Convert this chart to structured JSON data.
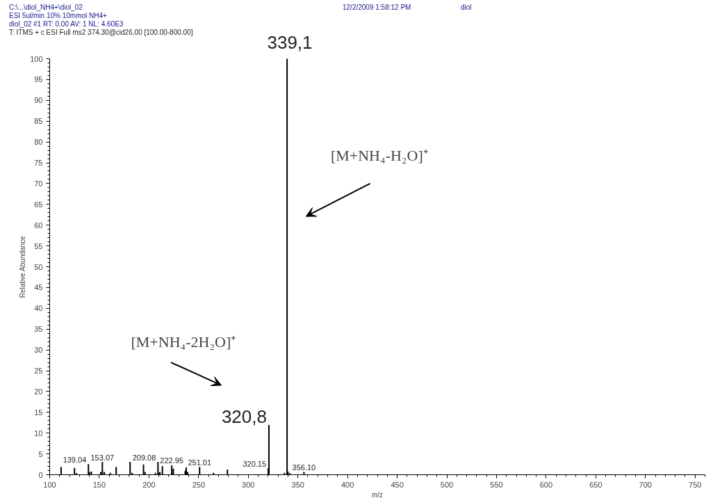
{
  "chart_data": {
    "type": "bar",
    "annotations": [
      "C:\\...\\diol_NH4+\\diol_02",
      "12/2/2009 1:58:12 PM",
      "diol",
      "ESI 5ul/min 10% 10mmol NH4+",
      "diol_02 #1  RT: 0.00  AV: 1  NL: 4.60E3",
      "T: ITMS + c ESI Full ms2 374.30@cid26.00 [100.00-800.00]",
      "[M+NH₄-H₂O]⁺",
      "[M+NH₄-2H₂O]⁺",
      {
        "text": "139.04",
        "x": 139.04,
        "y": 2.5
      },
      {
        "text": "153.07",
        "x": 153.07,
        "y": 3.0
      },
      {
        "text": "209.08",
        "x": 209.08,
        "y": 3.0
      },
      {
        "text": "222.95",
        "x": 222.95,
        "y": 2.2
      },
      {
        "text": "251.01",
        "x": 251.01,
        "y": 1.8
      },
      {
        "text": "320.15",
        "x": 320.15,
        "y": 1.5
      },
      {
        "text": "320,8",
        "x": 320.8,
        "y": 11.9
      },
      {
        "text": "339,1",
        "x": 339.1,
        "y": 100
      },
      {
        "text": "356.10",
        "x": 356.1,
        "y": 0.6
      }
    ],
    "xlabel": "m/z",
    "ylabel": "Relative Abundance",
    "x": [
      111.5,
      125,
      127,
      139.04,
      140,
      142,
      151.5,
      153.07,
      155,
      161,
      167,
      181,
      183,
      194.5,
      196,
      206.5,
      209.08,
      210,
      211,
      213.5,
      222.95,
      224.5,
      236.5,
      237.5,
      239,
      251.01,
      265,
      279,
      320.15,
      320.8,
      336.5,
      339.1,
      340,
      342,
      356.1
    ],
    "values": [
      1.8,
      1.6,
      0.3,
      2.5,
      0.6,
      0.7,
      0.6,
      3.0,
      0.6,
      0.4,
      1.8,
      3.0,
      0.4,
      2.4,
      0.6,
      0.4,
      3.0,
      0.4,
      0.6,
      2.0,
      2.2,
      1.4,
      0.9,
      1.7,
      0.6,
      1.8,
      0.4,
      1.2,
      1.5,
      11.9,
      0.4,
      100,
      0.7,
      0.3,
      0.6
    ],
    "color": "#000000",
    "xlim": [
      100,
      760
    ],
    "xticks": [
      100,
      150,
      200,
      250,
      300,
      350,
      400,
      450,
      500,
      550,
      600,
      650,
      700,
      750
    ],
    "ylim": [
      0,
      100
    ],
    "yticks": [
      0,
      5,
      10,
      15,
      20,
      25,
      30,
      35,
      40,
      45,
      50,
      55,
      60,
      65,
      70,
      75,
      80,
      85,
      90,
      95,
      100
    ],
    "grid": false
  }
}
